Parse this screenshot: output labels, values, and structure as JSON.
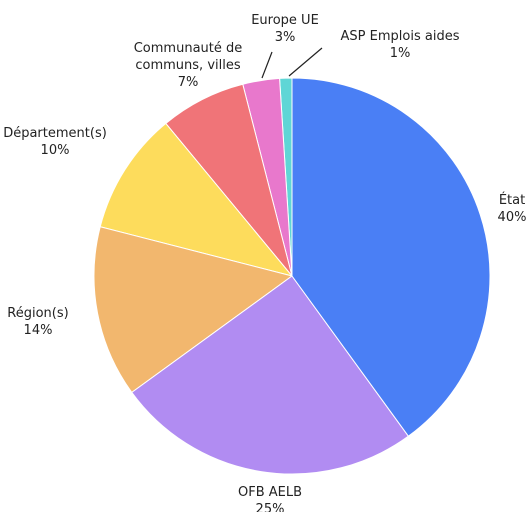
{
  "chart_data": {
    "type": "pie",
    "categories": [
      "État",
      "OFB AELB",
      "Région(s)",
      "Département(s)",
      "Communauté de communs, villes",
      "Europe UE",
      "ASP Emplois aides"
    ],
    "values": [
      40,
      25,
      14,
      10,
      7,
      3,
      1
    ],
    "value_labels": [
      "40%",
      "25%",
      "14%",
      "10%",
      "7%",
      "3%",
      "1%"
    ],
    "colors": [
      "#4a7ff5",
      "#b18cf2",
      "#f2b76e",
      "#fddc5c",
      "#f07478",
      "#e878cc",
      "#5fd6d6"
    ]
  }
}
